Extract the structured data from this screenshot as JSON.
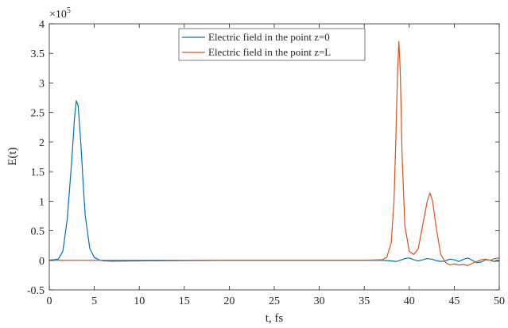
{
  "chart_data": {
    "type": "line",
    "title": "",
    "xlabel": "t, fs",
    "ylabel": "E(t)",
    "xlim": [
      0,
      50
    ],
    "ylim": [
      -50000,
      400000
    ],
    "exponent_label": "×10",
    "exponent_power": "5",
    "x_ticks": [
      0,
      5,
      10,
      15,
      20,
      25,
      30,
      35,
      40,
      45,
      50
    ],
    "x_tick_labels": [
      "0",
      "5",
      "10",
      "15",
      "20",
      "25",
      "30",
      "35",
      "40",
      "45",
      "50"
    ],
    "y_ticks": [
      -50000,
      0,
      50000,
      100000,
      150000,
      200000,
      250000,
      300000,
      350000,
      400000
    ],
    "y_tick_labels": [
      "-0.5",
      "0",
      "0.5",
      "1",
      "1.5",
      "2",
      "2.5",
      "3",
      "3.5",
      "4"
    ],
    "grid": false,
    "legend_position": "top-center",
    "series": [
      {
        "name": "Electric field in the point z=0",
        "color": "#0072BD",
        "x": [
          0,
          1,
          1.5,
          2,
          2.5,
          2.8,
          3.0,
          3.2,
          3.5,
          3.8,
          4.0,
          4.5,
          5,
          5.5,
          6,
          7,
          10,
          15,
          20,
          25,
          30,
          35,
          37,
          38,
          38.5,
          39,
          39.5,
          40,
          40.5,
          41,
          41.5,
          42,
          42.5,
          43,
          43.5,
          44,
          44.5,
          45,
          45.5,
          46,
          46.5,
          47,
          47.5,
          48,
          48.5,
          49,
          49.5,
          50
        ],
        "y": [
          0,
          2000,
          15000,
          70000,
          170000,
          240000,
          270000,
          262000,
          200000,
          120000,
          75000,
          20000,
          5000,
          1000,
          -1000,
          -1500,
          -1000,
          -500,
          0,
          0,
          0,
          0,
          0,
          -1000,
          -2000,
          0,
          3000,
          4000,
          1000,
          -1000,
          1000,
          3000,
          2000,
          -500,
          -2000,
          -1000,
          2000,
          1000,
          -2000,
          1500,
          4000,
          0,
          -4000,
          -3000,
          1000,
          0,
          -2000,
          -1000
        ]
      },
      {
        "name": "Electric field in the point z=L",
        "color": "#D95319",
        "x": [
          0,
          5,
          10,
          20,
          30,
          35,
          37,
          37.5,
          38,
          38.3,
          38.5,
          38.7,
          38.85,
          39.0,
          39.2,
          39.5,
          40,
          40.5,
          41,
          41.5,
          42,
          42.3,
          42.6,
          43,
          43.5,
          44,
          44.5,
          45,
          45.5,
          46,
          46.5,
          47,
          47.5,
          48,
          48.5,
          49,
          49.5,
          50
        ],
        "y": [
          0,
          0,
          0,
          0,
          0,
          0,
          1000,
          5000,
          30000,
          100000,
          200000,
          320000,
          370000,
          320000,
          180000,
          60000,
          15000,
          10000,
          20000,
          60000,
          100000,
          114000,
          100000,
          55000,
          10000,
          -3000,
          -8000,
          -6000,
          -8000,
          -7000,
          -9000,
          -5000,
          -2000,
          1000,
          2000,
          0,
          3000,
          4000
        ]
      }
    ]
  }
}
